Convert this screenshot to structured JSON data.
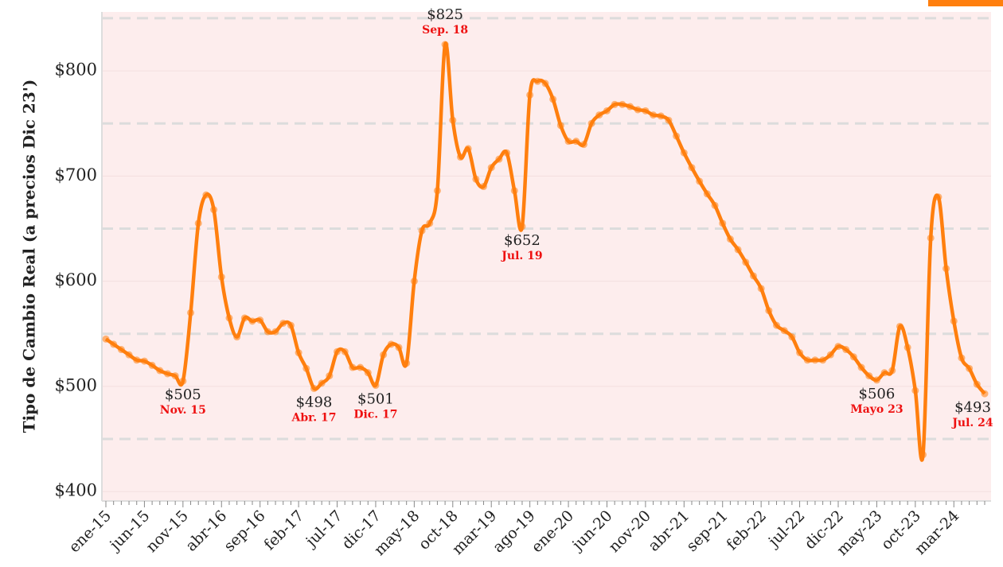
{
  "chart_data": {
    "type": "line",
    "y_label": "Tipo de Cambio Real (a precios Dic 23')",
    "categories": [
      "ene-15",
      null,
      null,
      null,
      null,
      "jun-15",
      null,
      null,
      null,
      null,
      "nov-15",
      null,
      null,
      null,
      null,
      "abr-16",
      null,
      null,
      null,
      null,
      "sep-16",
      null,
      null,
      null,
      null,
      "feb-17",
      null,
      null,
      null,
      null,
      "jul-17",
      null,
      null,
      null,
      null,
      "dic-17",
      null,
      null,
      null,
      null,
      "may-18",
      null,
      null,
      null,
      null,
      "oct-18",
      null,
      null,
      null,
      null,
      "mar-19",
      null,
      null,
      null,
      null,
      "ago-19",
      null,
      null,
      null,
      null,
      "ene-20",
      null,
      null,
      null,
      null,
      "jun-20",
      null,
      null,
      null,
      null,
      "nov-20",
      null,
      null,
      null,
      null,
      "abr-21",
      null,
      null,
      null,
      null,
      "sep-21",
      null,
      null,
      null,
      null,
      "feb-22",
      null,
      null,
      null,
      null,
      "jul-22",
      null,
      null,
      null,
      null,
      "dic-22",
      null,
      null,
      null,
      null,
      "may-23",
      null,
      null,
      null,
      null,
      "oct-23",
      null,
      null,
      null,
      null,
      "mar-24",
      null,
      null,
      null,
      null
    ],
    "values": [
      545,
      540,
      535,
      530,
      525,
      524,
      520,
      515,
      512,
      510,
      505,
      570,
      655,
      682,
      668,
      604,
      565,
      547,
      565,
      562,
      563,
      552,
      552,
      560,
      558,
      532,
      517,
      498,
      503,
      510,
      533,
      533,
      518,
      518,
      513,
      501,
      530,
      540,
      537,
      522,
      600,
      648,
      655,
      686,
      825,
      753,
      718,
      726,
      697,
      690,
      708,
      716,
      722,
      686,
      652,
      777,
      790,
      788,
      773,
      748,
      733,
      733,
      730,
      750,
      758,
      762,
      768,
      768,
      766,
      763,
      762,
      758,
      757,
      753,
      738,
      722,
      708,
      695,
      683,
      672,
      655,
      640,
      630,
      618,
      605,
      593,
      572,
      558,
      553,
      547,
      532,
      525,
      525,
      525,
      530,
      538,
      535,
      528,
      518,
      510,
      506,
      513,
      515,
      557,
      537,
      496,
      435,
      641,
      680,
      612,
      562,
      527,
      517,
      502,
      493
    ],
    "value_labels": [
      null,
      null,
      null,
      null,
      null,
      null,
      null,
      null,
      null,
      null,
      "$505",
      null,
      null,
      null,
      null,
      null,
      null,
      null,
      null,
      null,
      null,
      null,
      null,
      null,
      null,
      null,
      null,
      "$498",
      null,
      null,
      null,
      null,
      null,
      null,
      null,
      "$501",
      null,
      null,
      null,
      null,
      null,
      null,
      null,
      null,
      "$825",
      null,
      null,
      null,
      null,
      null,
      null,
      null,
      null,
      null,
      "$652",
      null,
      null,
      null,
      null,
      null,
      null,
      null,
      null,
      null,
      null,
      null,
      null,
      null,
      null,
      null,
      null,
      null,
      null,
      null,
      null,
      null,
      null,
      null,
      null,
      null,
      null,
      null,
      null,
      null,
      null,
      null,
      null,
      null,
      null,
      null,
      null,
      null,
      null,
      null,
      null,
      null,
      null,
      null,
      null,
      null,
      "$506",
      null,
      null,
      null,
      null,
      null,
      null,
      null,
      null,
      null,
      null,
      null,
      null,
      null,
      "$493"
    ],
    "point_notes": [
      null,
      null,
      null,
      null,
      null,
      null,
      null,
      null,
      null,
      null,
      "Nov. 15",
      null,
      null,
      null,
      null,
      null,
      null,
      null,
      null,
      null,
      null,
      null,
      null,
      null,
      null,
      null,
      null,
      "Abr. 17",
      null,
      null,
      null,
      null,
      null,
      null,
      null,
      "Dic. 17",
      null,
      null,
      null,
      null,
      null,
      null,
      null,
      null,
      "Sep. 18",
      null,
      null,
      null,
      null,
      null,
      null,
      null,
      null,
      null,
      "Jul. 19",
      null,
      null,
      null,
      null,
      null,
      null,
      null,
      null,
      null,
      null,
      null,
      null,
      null,
      null,
      null,
      null,
      null,
      null,
      null,
      null,
      null,
      null,
      null,
      null,
      null,
      null,
      null,
      null,
      null,
      null,
      null,
      null,
      null,
      null,
      null,
      null,
      null,
      null,
      null,
      null,
      null,
      null,
      null,
      null,
      null,
      "Mayo 23",
      null,
      null,
      null,
      null,
      null,
      null,
      null,
      null,
      null,
      null,
      null,
      null,
      null,
      "Jul. 24"
    ],
    "color": "#ff7f0e",
    "note_color": "#ee1111",
    "ylim": [
      391,
      856
    ],
    "yticks": [
      {
        "value": 400,
        "label": "$400"
      },
      {
        "value": 500,
        "label": "$500"
      },
      {
        "value": 600,
        "label": "$600"
      },
      {
        "value": 700,
        "label": "$700"
      },
      {
        "value": 800,
        "label": "$800"
      }
    ],
    "minor_grid": [
      450,
      550,
      650,
      750,
      850
    ],
    "grid": true
  }
}
